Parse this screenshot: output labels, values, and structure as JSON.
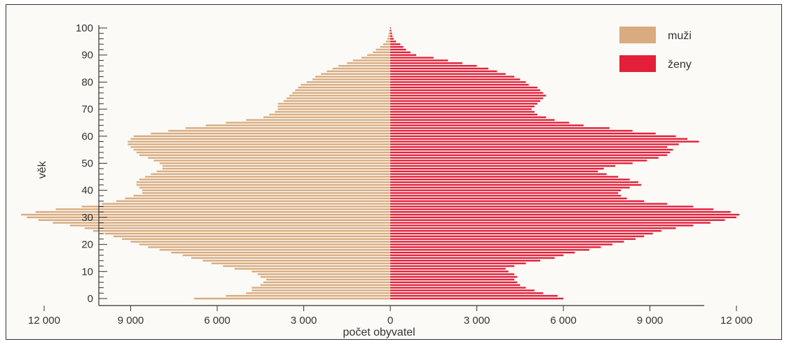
{
  "chart_data": {
    "type": "bar",
    "orientation": "horizontal",
    "subtype": "population-pyramid",
    "xlabel": "počet obyvatel",
    "ylabel": "věk",
    "x_ticks": [
      12000,
      9000,
      6000,
      3000,
      0,
      3000,
      6000,
      9000,
      12000
    ],
    "x_tick_labels": [
      "12 000",
      "9 000",
      "6 000",
      "3 000",
      "0",
      "3 000",
      "6 000",
      "9 000",
      "12 000"
    ],
    "y_ticks": [
      0,
      10,
      20,
      30,
      40,
      50,
      60,
      70,
      80,
      90,
      100
    ],
    "y_tick_labels": [
      "0",
      "10",
      "20",
      "30",
      "40",
      "50",
      "60",
      "70",
      "80",
      "90",
      "100"
    ],
    "ylim": [
      0,
      100
    ],
    "xlim_left": [
      0,
      13000
    ],
    "xlim_right": [
      0,
      14000
    ],
    "legend": {
      "placement": "top-right",
      "items": [
        "muži",
        "ženy"
      ]
    },
    "colors": {
      "muzi": "#d9ab7f",
      "zeny": "#e31f3a",
      "axis": "#333333"
    },
    "ages": [
      0,
      1,
      2,
      3,
      4,
      5,
      6,
      7,
      8,
      9,
      10,
      11,
      12,
      13,
      14,
      15,
      16,
      17,
      18,
      19,
      20,
      21,
      22,
      23,
      24,
      25,
      26,
      27,
      28,
      29,
      30,
      31,
      32,
      33,
      34,
      35,
      36,
      37,
      38,
      39,
      40,
      41,
      42,
      43,
      44,
      45,
      46,
      47,
      48,
      49,
      50,
      51,
      52,
      53,
      54,
      55,
      56,
      57,
      58,
      59,
      60,
      61,
      62,
      63,
      64,
      65,
      66,
      67,
      68,
      69,
      70,
      71,
      72,
      73,
      74,
      75,
      76,
      77,
      78,
      79,
      80,
      81,
      82,
      83,
      84,
      85,
      86,
      87,
      88,
      89,
      90,
      91,
      92,
      93,
      94,
      95,
      96,
      97,
      98,
      99,
      100
    ],
    "series": [
      {
        "name": "muži",
        "values": [
          6800,
          5700,
          5000,
          4800,
          4800,
          4500,
          4400,
          4300,
          4500,
          4600,
          4800,
          5400,
          5800,
          6200,
          6500,
          6900,
          7200,
          7600,
          8000,
          8400,
          8700,
          9000,
          9300,
          9600,
          9900,
          10300,
          10600,
          11100,
          11700,
          12200,
          12600,
          12800,
          12300,
          11600,
          10700,
          10000,
          9500,
          9200,
          8900,
          8600,
          8600,
          8700,
          8800,
          8800,
          8700,
          8500,
          8300,
          8100,
          7900,
          7900,
          8000,
          8200,
          8400,
          8700,
          8800,
          8900,
          9000,
          9100,
          9100,
          9000,
          8900,
          8300,
          7700,
          7100,
          6400,
          5700,
          5000,
          4400,
          4200,
          4000,
          3900,
          3900,
          3900,
          3700,
          3600,
          3500,
          3400,
          3300,
          3200,
          3100,
          2900,
          2700,
          2600,
          2400,
          2200,
          2000,
          1800,
          1500,
          1300,
          1000,
          800,
          600,
          500,
          350,
          250,
          150,
          100,
          80,
          60,
          40,
          20
        ]
      },
      {
        "name": "ženy",
        "values": [
          6000,
          5800,
          5300,
          5000,
          4700,
          4500,
          4400,
          4300,
          4400,
          4300,
          4100,
          4000,
          4300,
          4700,
          5200,
          5700,
          6000,
          6400,
          6900,
          7300,
          7700,
          8100,
          8500,
          8800,
          9100,
          9400,
          9900,
          10500,
          11100,
          11600,
          12000,
          12100,
          11800,
          11200,
          10500,
          9600,
          8800,
          8200,
          8000,
          7900,
          8000,
          8300,
          8700,
          8600,
          8300,
          7900,
          7500,
          7200,
          7400,
          7800,
          8400,
          8900,
          9300,
          9600,
          9700,
          9800,
          9600,
          10000,
          10700,
          10300,
          9900,
          9200,
          8400,
          7600,
          6700,
          6200,
          5700,
          5400,
          5100,
          5000,
          4900,
          5000,
          5100,
          5200,
          5300,
          5400,
          5300,
          5200,
          5100,
          4800,
          4700,
          4500,
          4300,
          4000,
          3700,
          3400,
          3000,
          2500,
          2000,
          1500,
          900,
          700,
          550,
          450,
          350,
          200,
          120,
          80,
          60,
          40,
          20
        ]
      }
    ]
  }
}
